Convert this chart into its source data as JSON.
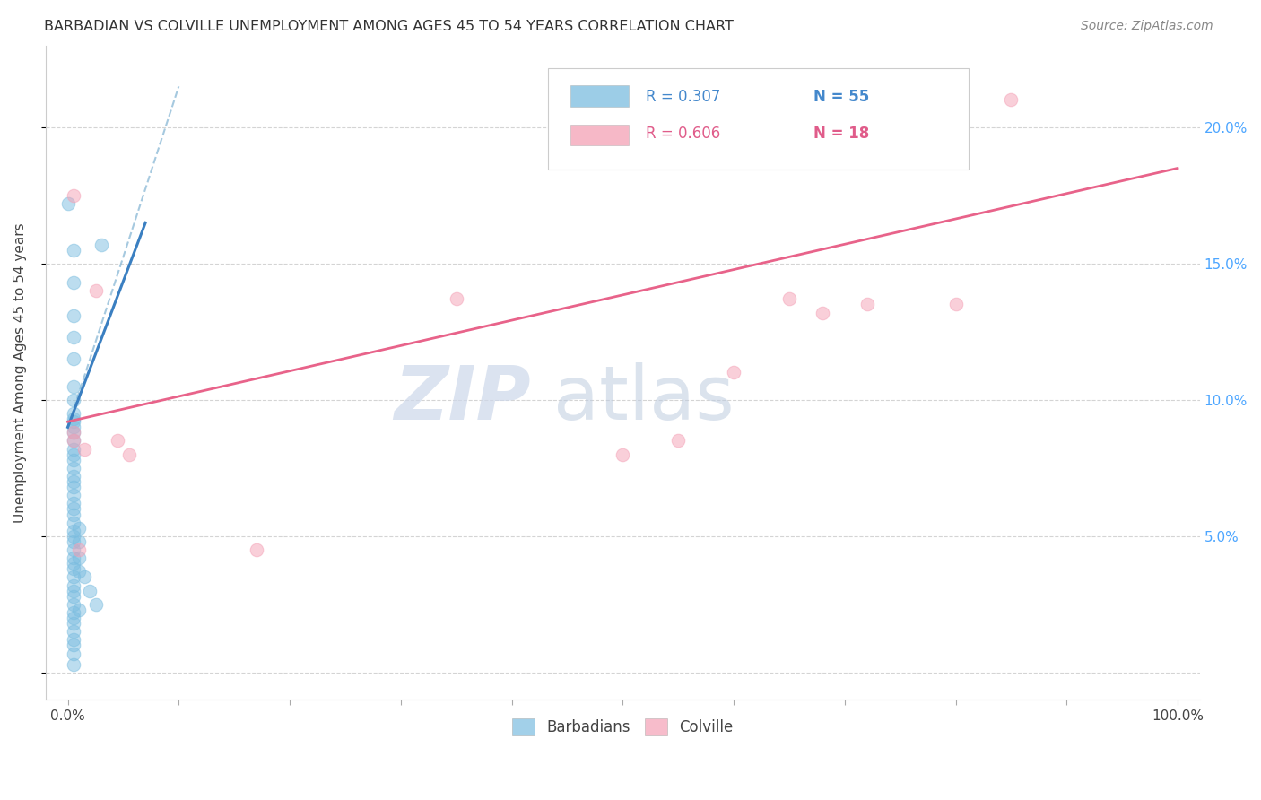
{
  "title": "BARBADIAN VS COLVILLE UNEMPLOYMENT AMONG AGES 45 TO 54 YEARS CORRELATION CHART",
  "source": "Source: ZipAtlas.com",
  "ylabel": "Unemployment Among Ages 45 to 54 years",
  "xlim": [
    -2,
    102
  ],
  "ylim": [
    -1,
    23
  ],
  "x_ticks": [
    0,
    10,
    20,
    30,
    40,
    50,
    60,
    70,
    80,
    90,
    100
  ],
  "y_ticks": [
    0,
    5,
    10,
    15,
    20
  ],
  "barbadian_scatter": [
    [
      0.0,
      17.2
    ],
    [
      0.5,
      15.5
    ],
    [
      0.5,
      14.3
    ],
    [
      0.5,
      13.1
    ],
    [
      0.5,
      12.3
    ],
    [
      0.5,
      11.5
    ],
    [
      0.5,
      10.5
    ],
    [
      0.5,
      10.0
    ],
    [
      0.5,
      9.5
    ],
    [
      0.5,
      9.2
    ],
    [
      0.5,
      9.0
    ],
    [
      0.5,
      8.8
    ],
    [
      0.5,
      8.5
    ],
    [
      0.5,
      8.2
    ],
    [
      0.5,
      8.0
    ],
    [
      0.5,
      7.8
    ],
    [
      0.5,
      7.5
    ],
    [
      0.5,
      7.2
    ],
    [
      0.5,
      7.0
    ],
    [
      0.5,
      6.8
    ],
    [
      0.5,
      6.5
    ],
    [
      0.5,
      6.2
    ],
    [
      0.5,
      6.0
    ],
    [
      0.5,
      5.8
    ],
    [
      0.5,
      5.5
    ],
    [
      0.5,
      5.2
    ],
    [
      0.5,
      5.0
    ],
    [
      0.5,
      4.8
    ],
    [
      0.5,
      4.5
    ],
    [
      0.5,
      4.2
    ],
    [
      0.5,
      4.0
    ],
    [
      0.5,
      3.8
    ],
    [
      0.5,
      3.5
    ],
    [
      0.5,
      3.2
    ],
    [
      0.5,
      3.0
    ],
    [
      0.5,
      2.8
    ],
    [
      0.5,
      2.5
    ],
    [
      0.5,
      2.2
    ],
    [
      0.5,
      2.0
    ],
    [
      0.5,
      1.8
    ],
    [
      0.5,
      1.5
    ],
    [
      0.5,
      1.2
    ],
    [
      0.5,
      1.0
    ],
    [
      0.5,
      0.7
    ],
    [
      1.0,
      5.3
    ],
    [
      1.0,
      4.8
    ],
    [
      1.0,
      4.2
    ],
    [
      1.0,
      3.7
    ],
    [
      1.0,
      2.3
    ],
    [
      1.5,
      3.5
    ],
    [
      2.0,
      3.0
    ],
    [
      2.5,
      2.5
    ],
    [
      3.0,
      15.7
    ],
    [
      0.5,
      9.3
    ],
    [
      0.5,
      0.3
    ]
  ],
  "colville_scatter": [
    [
      0.5,
      17.5
    ],
    [
      0.5,
      8.8
    ],
    [
      0.5,
      8.5
    ],
    [
      1.5,
      8.2
    ],
    [
      2.5,
      14.0
    ],
    [
      4.5,
      8.5
    ],
    [
      5.5,
      8.0
    ],
    [
      17.0,
      4.5
    ],
    [
      35.0,
      13.7
    ],
    [
      55.0,
      8.5
    ],
    [
      60.0,
      11.0
    ],
    [
      65.0,
      13.7
    ],
    [
      68.0,
      13.2
    ],
    [
      72.0,
      13.5
    ],
    [
      80.0,
      13.5
    ],
    [
      85.0,
      21.0
    ],
    [
      1.0,
      4.5
    ],
    [
      50.0,
      8.0
    ]
  ],
  "barbadian_trend_solid": [
    0.0,
    7.0,
    9.0,
    16.5
  ],
  "barbadian_trend_dash": [
    0.0,
    10.0,
    9.0,
    21.5
  ],
  "colville_trend": [
    0.0,
    100.0,
    9.2,
    18.5
  ],
  "blue_color": "#7bbde0",
  "pink_color": "#f4a0b5",
  "blue_line_color": "#3a7fc1",
  "pink_line_color": "#e8638a",
  "blue_dash_color": "#90bcd8",
  "watermark_zip_color": "#cdd8ea",
  "watermark_atlas_color": "#beccdf",
  "background_color": "#ffffff",
  "grid_color": "#d0d0d0",
  "right_tick_color": "#4da6ff",
  "legend_box_color": "#f0f0f0"
}
